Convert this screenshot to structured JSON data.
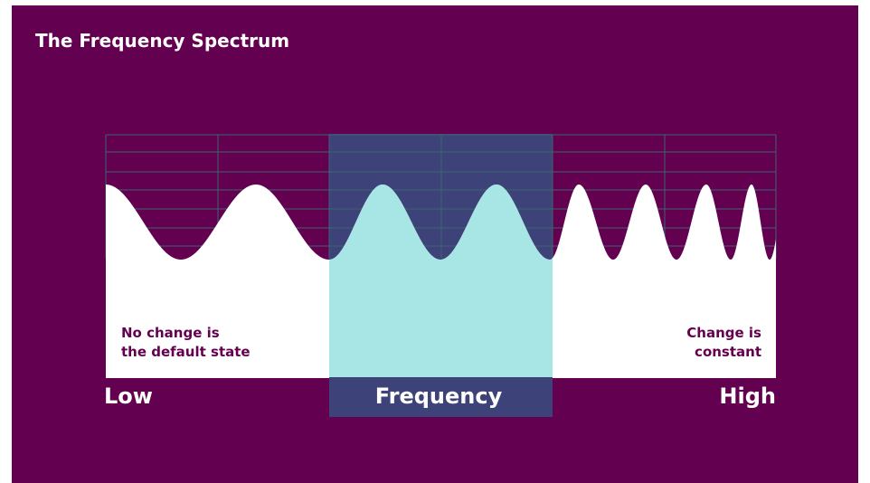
{
  "title": "The Frequency Spectrum",
  "labels": {
    "low": "Low",
    "center": "Frequency",
    "high": "High",
    "left_note_line1": "No change is",
    "left_note_line2": "the default state",
    "right_note_line1": "Change is",
    "right_note_line2": "constant"
  },
  "colors": {
    "background": "#640050",
    "wave_fill": "#ffffff",
    "highlight_fill": "#a8e6e6",
    "highlight_overlay": "#3d4278",
    "grid": "#3d6470"
  }
}
